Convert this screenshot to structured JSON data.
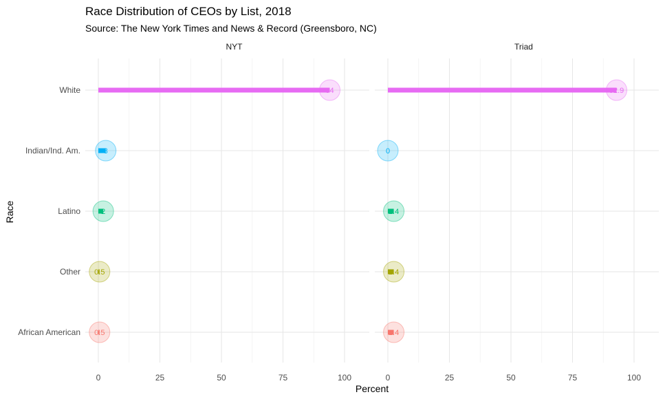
{
  "chart_data": {
    "type": "lollipop",
    "title": "Race Distribution of CEOs by List, 2018",
    "subtitle": "Source: The New York Times and News & Record (Greensboro, NC)",
    "xlabel": "Percent",
    "ylabel": "Race",
    "xlim": [
      0,
      100
    ],
    "x_ticks": [
      "0",
      "25",
      "50",
      "75",
      "100"
    ],
    "categories": [
      "White",
      "Indian/Ind. Am.",
      "Latino",
      "Other",
      "African American"
    ],
    "category_colors": [
      "#e76bf3",
      "#00b0f6",
      "#00bf7d",
      "#a3a500",
      "#f8766d"
    ],
    "grid": true,
    "legend": "none",
    "panels": [
      {
        "name": "NYT",
        "values": [
          94,
          3,
          2,
          0.5,
          0.5
        ],
        "labels": [
          "94",
          "3",
          "2",
          "0.5",
          "0.5"
        ]
      },
      {
        "name": "Triad",
        "values": [
          92.9,
          0,
          2.4,
          2.4,
          2.4
        ],
        "labels": [
          "92.9",
          "0",
          "2.4",
          "2.4",
          "2.4"
        ]
      }
    ]
  }
}
